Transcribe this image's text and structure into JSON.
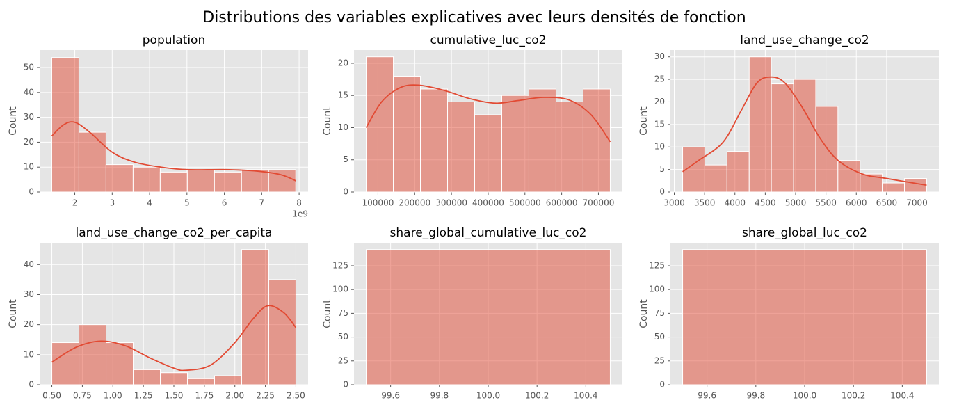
{
  "title": "Distributions des variables explicatives avec leurs densités de fonction",
  "chart_data": [
    {
      "type": "histogram",
      "title": "population",
      "ylabel": "Count",
      "x_offset_label": "1e9",
      "color": "#E24A33",
      "grid": true,
      "bins": [
        1.385,
        2.11,
        2.835,
        3.56,
        4.285,
        5.01,
        5.735,
        6.46,
        7.185,
        7.91
      ],
      "values": [
        54,
        24,
        11,
        10,
        8,
        9,
        8,
        9,
        9
      ],
      "kde": {
        "x": [
          1.385,
          1.7,
          2.0,
          2.4,
          3.0,
          3.6,
          4.3,
          5.0,
          6.0,
          6.8,
          7.5,
          7.91
        ],
        "values": [
          22.5,
          27,
          28,
          24,
          16,
          12,
          10,
          9,
          9,
          8.5,
          7,
          4.5
        ]
      },
      "xlim": [
        1.06,
        8.24
      ],
      "xticks": [
        2,
        3,
        4,
        5,
        6,
        7,
        8
      ],
      "ylim": [
        0,
        57
      ],
      "yticks": [
        0,
        10,
        20,
        30,
        40,
        50
      ]
    },
    {
      "type": "histogram",
      "title": "cumulative_luc_co2",
      "ylabel": "Count",
      "color": "#E24A33",
      "grid": true,
      "bins": [
        68000,
        141800,
        215600,
        289400,
        363200,
        437000,
        510800,
        584600,
        658400,
        732200
      ],
      "values": [
        21,
        18,
        16,
        14,
        12,
        15,
        16,
        14,
        16
      ],
      "kde": {
        "x": [
          68000,
          110000,
          160000,
          210000,
          280000,
          350000,
          420000,
          480000,
          550000,
          620000,
          680000,
          732200
        ],
        "values": [
          10,
          14,
          16.2,
          16.6,
          15.8,
          14.5,
          13.8,
          14.2,
          14.7,
          14.3,
          12,
          7.8
        ]
      },
      "xlim": [
        34790,
        765410
      ],
      "xticks": [
        100000,
        200000,
        300000,
        400000,
        500000,
        600000,
        700000
      ],
      "ylim": [
        0,
        22.05
      ],
      "yticks": [
        0,
        5,
        10,
        15,
        20
      ]
    },
    {
      "type": "histogram",
      "title": "land_use_change_co2",
      "ylabel": "Count",
      "color": "#E24A33",
      "grid": true,
      "bins": [
        3138,
        3504,
        3869,
        4235,
        4600,
        4966,
        5332,
        5697,
        6063,
        6428,
        6794,
        7160
      ],
      "values": [
        10,
        6,
        9,
        30,
        24,
        25,
        19,
        7,
        4,
        2,
        3
      ],
      "kde": {
        "x": [
          3138,
          3400,
          3800,
          4100,
          4350,
          4550,
          4800,
          5100,
          5400,
          5700,
          6100,
          6500,
          7160
        ],
        "values": [
          4.5,
          7,
          11,
          18,
          24,
          25.5,
          24.5,
          19,
          12,
          7,
          4,
          3,
          1.5
        ]
      },
      "xlim": [
        2937,
        7361
      ],
      "xticks": [
        3000,
        3500,
        4000,
        4500,
        5000,
        5500,
        6000,
        6500,
        7000
      ],
      "ylim": [
        0,
        31.5
      ],
      "yticks": [
        0,
        5,
        10,
        15,
        20,
        25,
        30
      ]
    },
    {
      "type": "histogram",
      "title": "land_use_change_co2_per_capita",
      "ylabel": "Count",
      "color": "#E24A33",
      "grid": true,
      "bins": [
        0.5,
        0.7222,
        0.9444,
        1.1667,
        1.3889,
        1.6111,
        1.8333,
        2.0556,
        2.2778,
        2.5
      ],
      "values": [
        14,
        20,
        14,
        5,
        4,
        2,
        3,
        45,
        35
      ],
      "kde": {
        "x": [
          0.5,
          0.7,
          0.9,
          1.1,
          1.3,
          1.5,
          1.6,
          1.8,
          2.0,
          2.15,
          2.27,
          2.4,
          2.5
        ],
        "values": [
          7.5,
          12.5,
          14.5,
          13,
          9,
          5.5,
          4.8,
          6.5,
          14,
          22,
          26.3,
          24,
          19
        ]
      },
      "xlim": [
        0.4,
        2.6
      ],
      "xticks": [
        {
          "value": 0.5,
          "label": "0.50"
        },
        {
          "value": 0.75,
          "label": "0.75"
        },
        {
          "value": 1,
          "label": "1.00"
        },
        {
          "value": 1.25,
          "label": "1.25"
        },
        {
          "value": 1.5,
          "label": "1.50"
        },
        {
          "value": 1.75,
          "label": "1.75"
        },
        {
          "value": 2,
          "label": "2.00"
        },
        {
          "value": 2.25,
          "label": "2.25"
        },
        {
          "value": 2.5,
          "label": "2.50"
        }
      ],
      "ylim": [
        0,
        47.25
      ],
      "yticks": [
        0,
        10,
        20,
        30,
        40
      ]
    },
    {
      "type": "histogram",
      "title": "share_global_cumulative_luc_co2",
      "ylabel": "Count",
      "color": "#E24A33",
      "grid": true,
      "bins": [
        99.5,
        100.5
      ],
      "values": [
        142
      ],
      "xlim": [
        99.45,
        100.55
      ],
      "xticks": [
        99.6,
        99.8,
        {
          "value": 100,
          "label": "100.0"
        },
        100.2,
        100.4
      ],
      "ylim": [
        0,
        149.1
      ],
      "yticks": [
        0,
        25,
        50,
        75,
        100,
        125
      ]
    },
    {
      "type": "histogram",
      "title": "share_global_luc_co2",
      "ylabel": "Count",
      "color": "#E24A33",
      "grid": true,
      "bins": [
        99.5,
        100.5
      ],
      "values": [
        142
      ],
      "xlim": [
        99.45,
        100.55
      ],
      "xticks": [
        99.6,
        99.8,
        {
          "value": 100,
          "label": "100.0"
        },
        100.2,
        100.4
      ],
      "ylim": [
        0,
        149.1
      ],
      "yticks": [
        0,
        25,
        50,
        75,
        100,
        125
      ]
    }
  ]
}
